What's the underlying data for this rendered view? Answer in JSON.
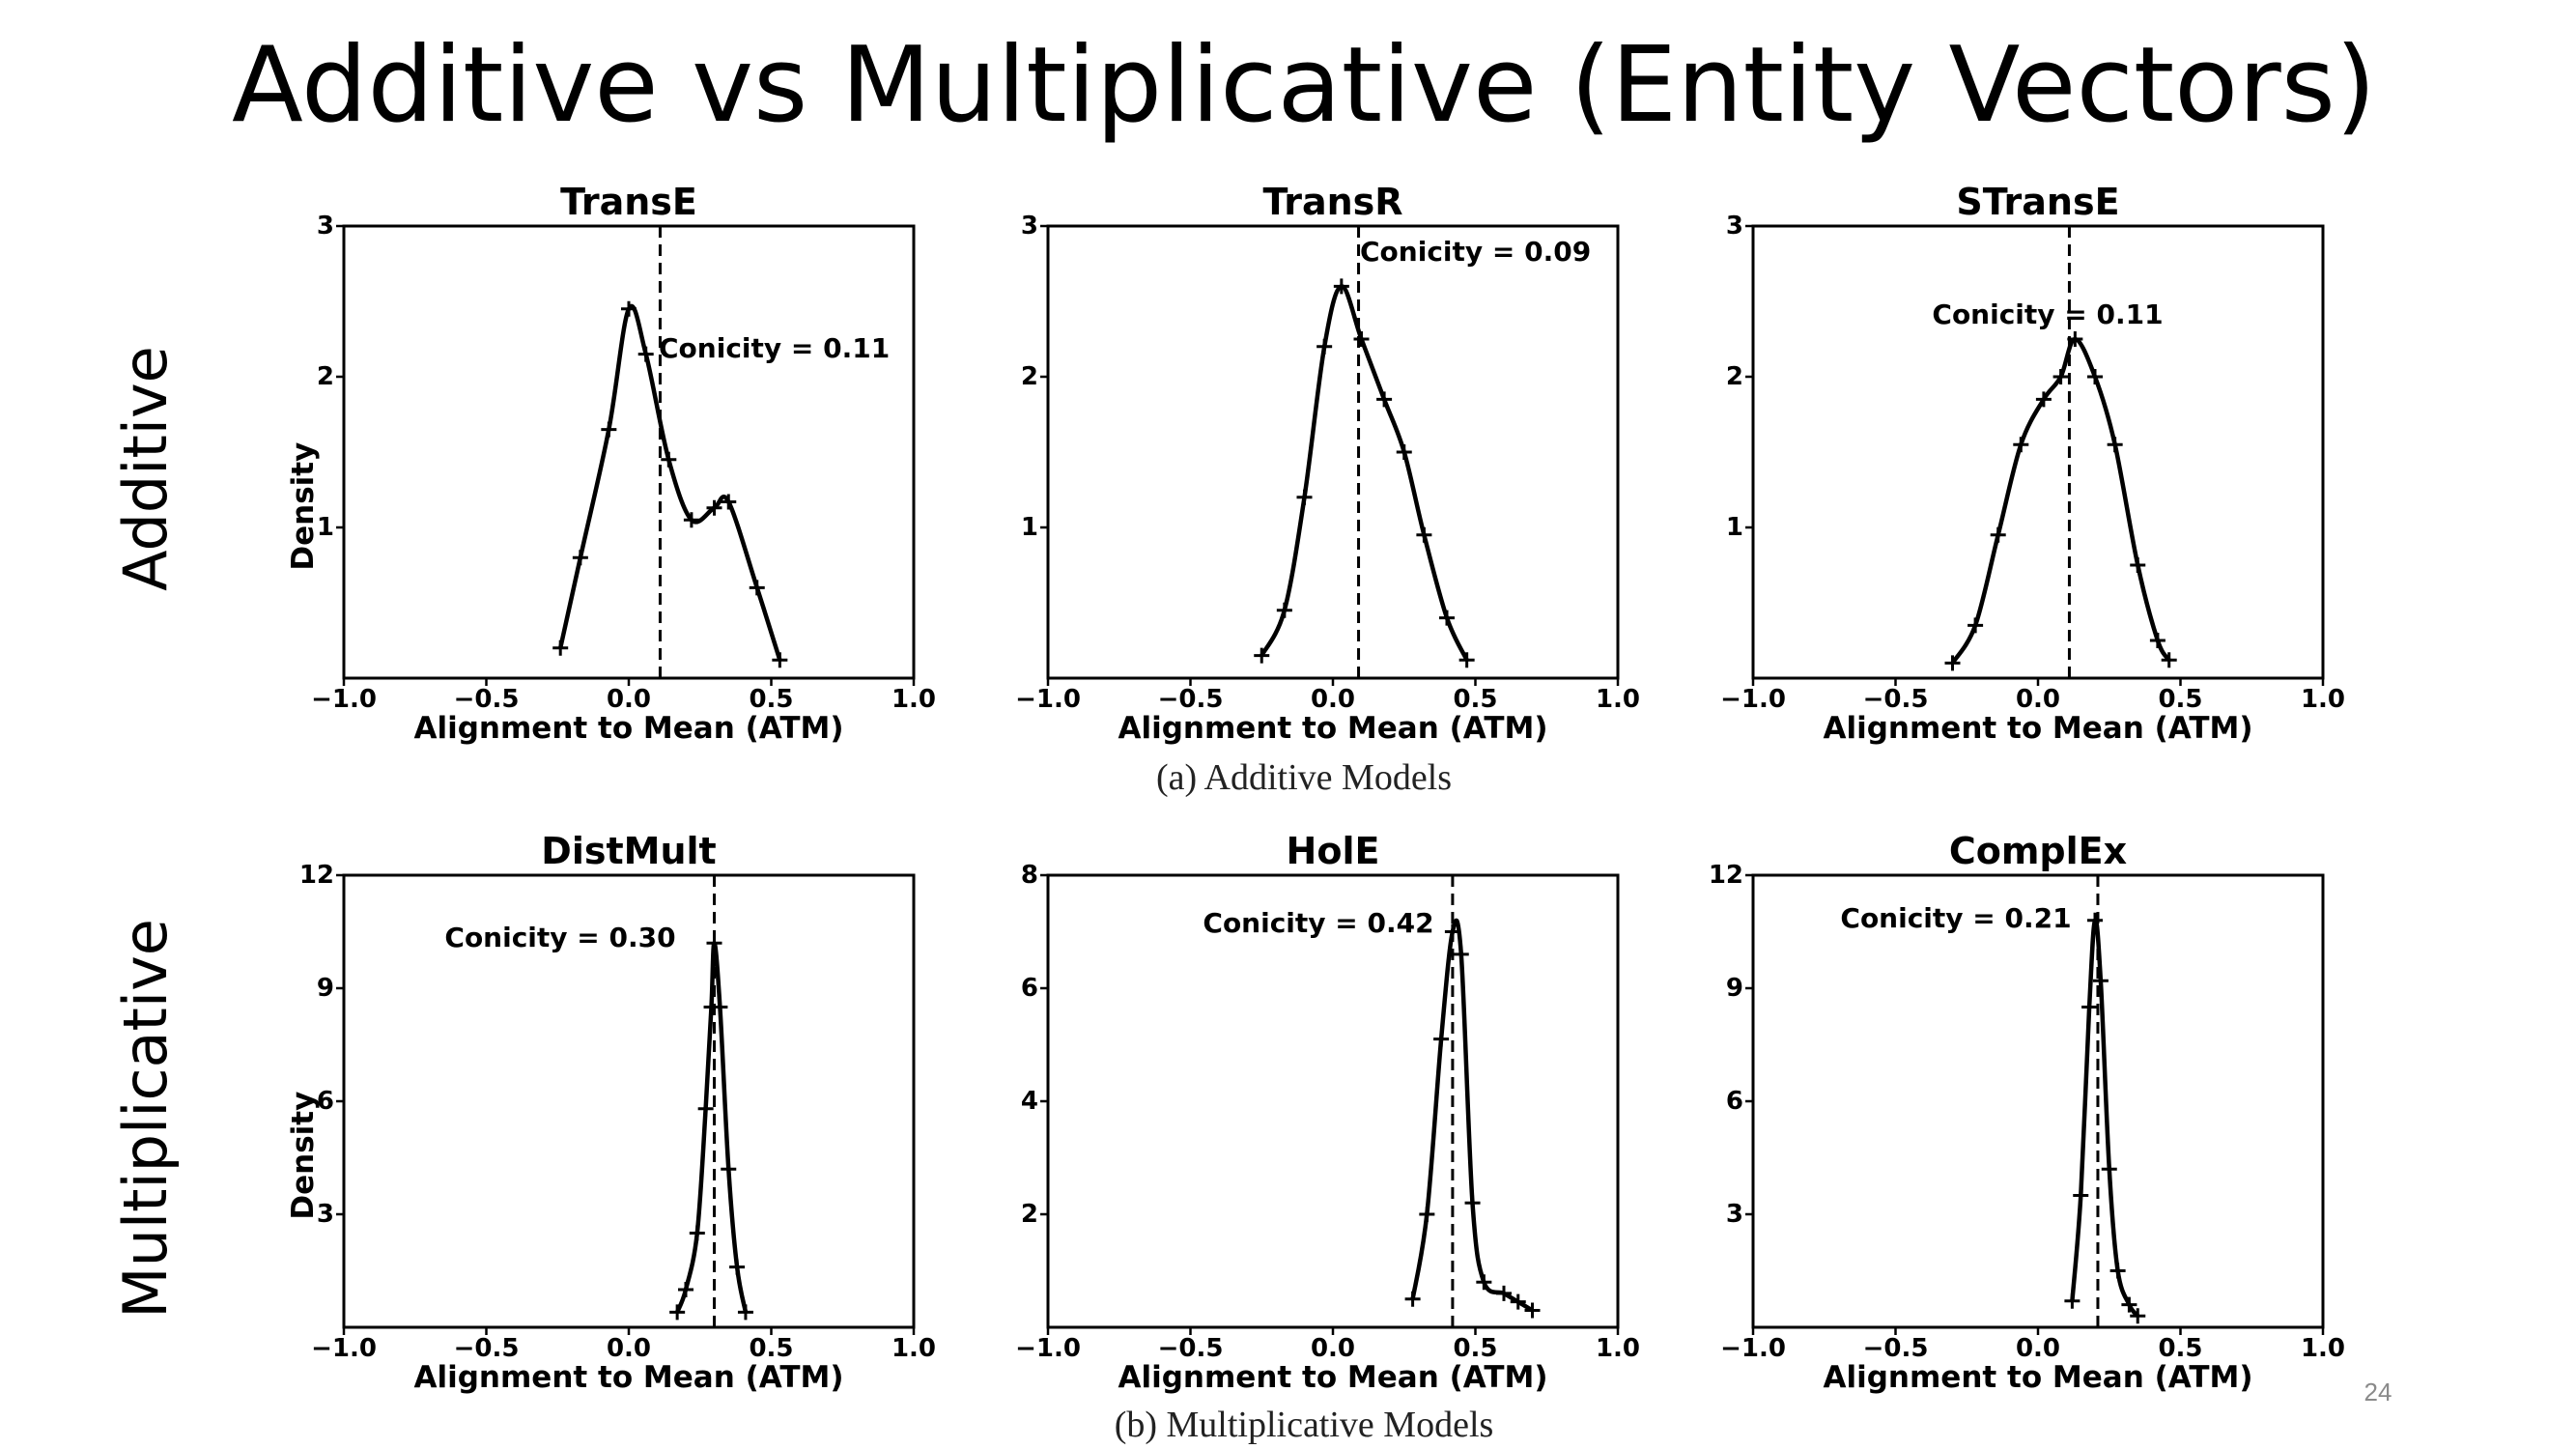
{
  "slide": {
    "title": "Additive vs Multiplicative (Entity Vectors)",
    "row_labels": [
      "Additive",
      "Multiplicative"
    ],
    "captions": [
      "(a) Additive Models",
      "(b) Multiplicative Models"
    ],
    "page_number": "24"
  },
  "chart_data": [
    {
      "type": "line",
      "title": "TransE",
      "xlabel": "Alignment to Mean (ATM)",
      "ylabel": "Density",
      "xlim": [
        -1.0,
        1.0
      ],
      "ylim": [
        0,
        3
      ],
      "xticks": [
        -1.0,
        -0.5,
        0.0,
        0.5,
        1.0
      ],
      "xtick_labels": [
        "−1.0",
        "−0.5",
        "0.0",
        "0.5",
        "1.0"
      ],
      "yticks": [
        1,
        2,
        3
      ],
      "ytick_labels": [
        "1",
        "2",
        "3"
      ],
      "grid": false,
      "series": [
        {
          "x": [
            -0.24,
            -0.17,
            -0.07,
            0.0,
            0.06,
            0.14,
            0.22,
            0.3,
            0.35,
            0.45,
            0.53
          ],
          "y": [
            0.2,
            0.8,
            1.65,
            2.45,
            2.15,
            1.45,
            1.05,
            1.13,
            1.17,
            0.6,
            0.12
          ]
        }
      ],
      "annotation": {
        "text": "Conicity = 0.11",
        "x": 0.11
      }
    },
    {
      "type": "line",
      "title": "TransR",
      "xlabel": "Alignment to Mean (ATM)",
      "ylabel": "",
      "xlim": [
        -1.0,
        1.0
      ],
      "ylim": [
        0,
        3
      ],
      "xticks": [
        -1.0,
        -0.5,
        0.0,
        0.5,
        1.0
      ],
      "xtick_labels": [
        "−1.0",
        "−0.5",
        "0.0",
        "0.5",
        "1.0"
      ],
      "yticks": [
        1,
        2,
        3
      ],
      "ytick_labels": [
        "1",
        "2",
        "3"
      ],
      "grid": false,
      "series": [
        {
          "x": [
            -0.25,
            -0.17,
            -0.1,
            -0.03,
            0.03,
            0.1,
            0.18,
            0.25,
            0.32,
            0.4,
            0.47
          ],
          "y": [
            0.15,
            0.45,
            1.2,
            2.2,
            2.6,
            2.25,
            1.85,
            1.5,
            0.95,
            0.4,
            0.12
          ]
        }
      ],
      "annotation": {
        "text": "Conicity = 0.09",
        "x": 0.09
      }
    },
    {
      "type": "line",
      "title": "STransE",
      "xlabel": "Alignment to Mean (ATM)",
      "ylabel": "",
      "xlim": [
        -1.0,
        1.0
      ],
      "ylim": [
        0,
        3
      ],
      "xticks": [
        -1.0,
        -0.5,
        0.0,
        0.5,
        1.0
      ],
      "xtick_labels": [
        "−1.0",
        "−0.5",
        "0.0",
        "0.5",
        "1.0"
      ],
      "yticks": [
        1,
        2,
        3
      ],
      "ytick_labels": [
        "1",
        "2",
        "3"
      ],
      "grid": false,
      "series": [
        {
          "x": [
            -0.3,
            -0.22,
            -0.14,
            -0.06,
            0.02,
            0.08,
            0.13,
            0.2,
            0.27,
            0.35,
            0.42,
            0.46
          ],
          "y": [
            0.1,
            0.35,
            0.95,
            1.55,
            1.85,
            2.0,
            2.25,
            2.0,
            1.55,
            0.75,
            0.25,
            0.12
          ]
        }
      ],
      "annotation": {
        "text": "Conicity = 0.11",
        "x": 0.11
      }
    },
    {
      "type": "line",
      "title": "DistMult",
      "xlabel": "Alignment to Mean (ATM)",
      "ylabel": "Density",
      "xlim": [
        -1.0,
        1.0
      ],
      "ylim": [
        0,
        12
      ],
      "xticks": [
        -1.0,
        -0.5,
        0.0,
        0.5,
        1.0
      ],
      "xtick_labels": [
        "−1.0",
        "−0.5",
        "0.0",
        "0.5",
        "1.0"
      ],
      "yticks": [
        3,
        6,
        9,
        12
      ],
      "ytick_labels": [
        "3",
        "6",
        "9",
        "12"
      ],
      "grid": false,
      "series": [
        {
          "x": [
            0.17,
            0.2,
            0.24,
            0.27,
            0.29,
            0.3,
            0.32,
            0.35,
            0.38,
            0.41
          ],
          "y": [
            0.4,
            1.0,
            2.5,
            5.8,
            8.5,
            10.2,
            8.5,
            4.2,
            1.6,
            0.4
          ]
        }
      ],
      "annotation": {
        "text": "Conicity = 0.30",
        "x": 0.3
      }
    },
    {
      "type": "line",
      "title": "HolE",
      "xlabel": "Alignment to Mean (ATM)",
      "ylabel": "",
      "xlim": [
        -1.0,
        1.0
      ],
      "ylim": [
        0,
        8
      ],
      "xticks": [
        -1.0,
        -0.5,
        0.0,
        0.5,
        1.0
      ],
      "xtick_labels": [
        "−1.0",
        "−0.5",
        "0.0",
        "0.5",
        "1.0"
      ],
      "yticks": [
        2,
        4,
        6,
        8
      ],
      "ytick_labels": [
        "2",
        "4",
        "6",
        "8"
      ],
      "grid": false,
      "series": [
        {
          "x": [
            0.28,
            0.33,
            0.38,
            0.42,
            0.45,
            0.49,
            0.53,
            0.6,
            0.65,
            0.7
          ],
          "y": [
            0.5,
            2.0,
            5.1,
            7.0,
            6.6,
            2.2,
            0.8,
            0.6,
            0.45,
            0.3
          ]
        }
      ],
      "annotation": {
        "text": "Conicity = 0.42",
        "x": 0.42
      }
    },
    {
      "type": "line",
      "title": "ComplEx",
      "xlabel": "Alignment to Mean (ATM)",
      "ylabel": "",
      "xlim": [
        -1.0,
        1.0
      ],
      "ylim": [
        0,
        12
      ],
      "xticks": [
        -1.0,
        -0.5,
        0.0,
        0.5,
        1.0
      ],
      "xtick_labels": [
        "−1.0",
        "−0.5",
        "0.0",
        "0.5",
        "1.0"
      ],
      "yticks": [
        3,
        6,
        9,
        12
      ],
      "ytick_labels": [
        "3",
        "6",
        "9",
        "12"
      ],
      "grid": false,
      "series": [
        {
          "x": [
            0.12,
            0.15,
            0.18,
            0.2,
            0.22,
            0.25,
            0.28,
            0.32,
            0.35
          ],
          "y": [
            0.7,
            3.5,
            8.5,
            10.8,
            9.2,
            4.2,
            1.5,
            0.6,
            0.3
          ]
        }
      ],
      "annotation": {
        "text": "Conicity = 0.21",
        "x": 0.21
      }
    }
  ]
}
